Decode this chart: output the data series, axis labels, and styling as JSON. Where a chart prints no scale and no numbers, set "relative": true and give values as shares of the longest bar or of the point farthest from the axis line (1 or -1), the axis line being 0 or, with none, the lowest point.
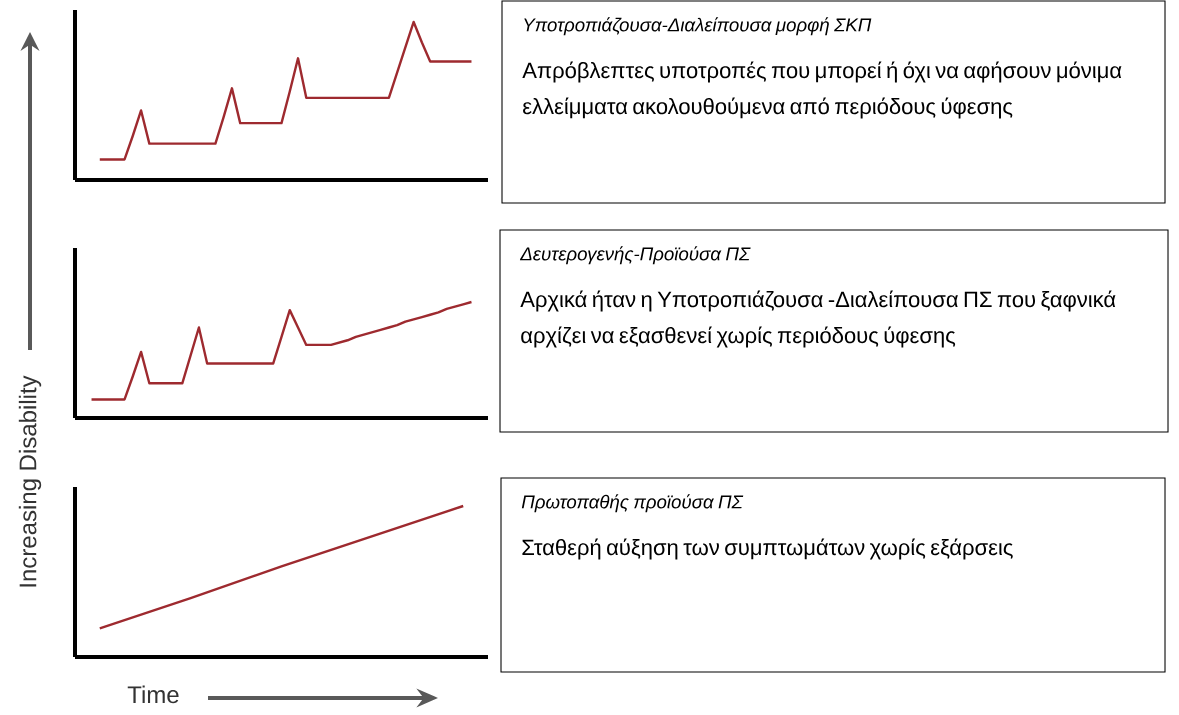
{
  "chart_data": [
    {
      "type": "line",
      "relative": true,
      "color": "#9e2a2f",
      "categories": [
        null,
        null,
        null,
        null,
        null,
        null,
        null,
        null,
        null,
        null,
        null,
        null,
        null,
        null,
        null,
        null,
        null,
        null,
        null,
        null,
        null,
        null,
        null,
        null,
        null,
        null,
        null,
        null,
        null,
        null,
        null,
        null,
        null,
        null,
        null,
        null,
        null,
        null,
        null,
        null,
        null,
        null,
        null,
        null,
        null,
        null
      ],
      "values": [
        0.13,
        0.13,
        0.13,
        0.13,
        0.28,
        0.44,
        0.23,
        0.23,
        0.23,
        0.23,
        0.23,
        0.23,
        0.23,
        0.23,
        0.23,
        0.4,
        0.58,
        0.36,
        0.36,
        0.36,
        0.36,
        0.36,
        0.36,
        0.56,
        0.77,
        0.52,
        0.52,
        0.52,
        0.52,
        0.52,
        0.52,
        0.52,
        0.52,
        0.52,
        0.52,
        0.52,
        0.68,
        0.84,
        1,
        0.87,
        0.75,
        0.75,
        0.75,
        0.75,
        0.75,
        0.75
      ]
    },
    {
      "type": "other",
      "title": "Υποτροπιάζουσα-Διαλείπουσα μορφή ΣΚΠ",
      "annotations": [
        "Απρόβλεπτες υποτροπές που μπορεί ή όχι να αφήσουν μόνιμα ελλείμματα ακολουθούμενα από περιόδους ύφεσης"
      ]
    },
    {
      "type": "line",
      "relative": true,
      "ylabel": "Increasing Disability",
      "color": "#9e2a2f",
      "categories": [
        null,
        null,
        null,
        null,
        null,
        null,
        null,
        null,
        null,
        null,
        null,
        null,
        null,
        null,
        null,
        null,
        null,
        null,
        null,
        null,
        null,
        null,
        null,
        null,
        null,
        null,
        null,
        null,
        null,
        null,
        null,
        null,
        null,
        null,
        null,
        null,
        null,
        null,
        null,
        null,
        null,
        null,
        null,
        null,
        null,
        null,
        null
      ],
      "values": [
        0.16,
        0.16,
        0.16,
        0.16,
        0.16,
        0.36,
        0.57,
        0.3,
        0.3,
        0.3,
        0.3,
        0.3,
        0.54,
        0.78,
        0.47,
        0.47,
        0.47,
        0.47,
        0.47,
        0.47,
        0.47,
        0.47,
        0.47,
        0.7,
        0.93,
        0.78,
        0.63,
        0.63,
        0.63,
        0.63,
        0.65,
        0.67,
        0.7,
        0.72,
        0.74,
        0.76,
        0.78,
        0.8,
        0.83,
        0.85,
        0.87,
        0.89,
        0.91,
        0.94,
        0.96,
        0.98,
        1
      ]
    },
    {
      "type": "other",
      "title": "Δευτερογενής-Προϊούσα ΠΣ",
      "annotations": [
        "Αρχικά ήταν η  Υποτροπιάζουσα -Διαλείπουσα ΠΣ που ξαφνικά αρχίζει να εξασθενεί χωρίς περιόδους ύφεσης"
      ]
    },
    {
      "type": "line",
      "relative": true,
      "xlabel": "Time",
      "color": "#9e2a2f",
      "categories": [
        null,
        null,
        null,
        null,
        null
      ],
      "values": [
        0.19,
        0.39,
        0.6,
        0.8,
        1
      ]
    },
    {
      "type": "other",
      "title": "Πρωτοπαθής προϊούσα ΠΣ",
      "annotations": [
        "Σταθερή αύξηση των συμπτωμάτων  χωρίς εξάρσεις"
      ]
    }
  ]
}
